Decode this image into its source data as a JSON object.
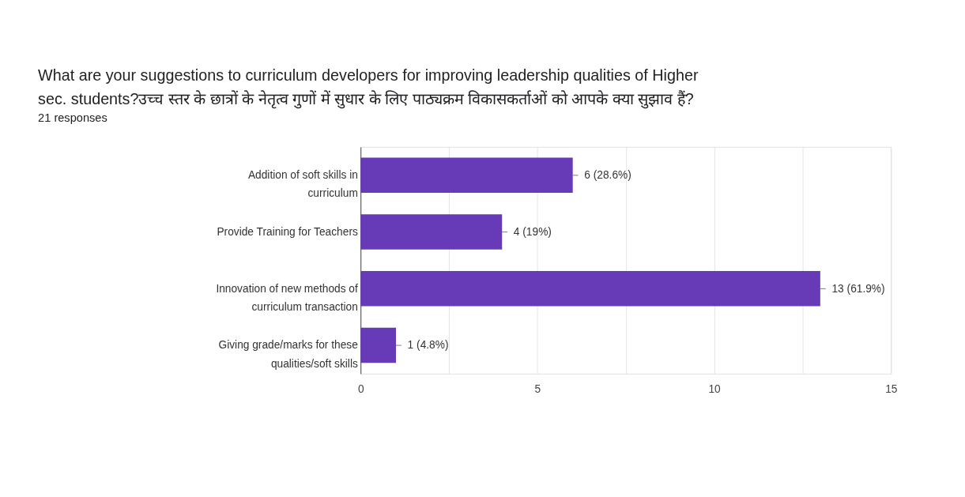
{
  "chart_data": {
    "type": "bar",
    "orientation": "horizontal",
    "title": "What are your suggestions to curriculum developers for improving leadership qualities of Higher sec. students?उच्च स्तर के छात्रों के नेतृत्व गुणों में सुधार के लिए पाठ्यक्रम विकासकर्ताओं को आपके क्या सुझाव हैं?",
    "subtitle": "21 responses",
    "categories": [
      "Addition of soft skills in curriculum",
      "Provide Training for Teachers",
      "Innovation of new methods of curriculum transaction",
      "Giving grade/marks for these qualities/soft skills"
    ],
    "values": [
      6,
      4,
      13,
      1
    ],
    "value_labels": [
      "6 (28.6%)",
      "4 (19%)",
      "13 (61.9%)",
      "1 (4.8%)"
    ],
    "color": "#673ab7",
    "xlim": [
      0,
      15
    ],
    "xticks": [
      0,
      {
        "value": 2.5,
        "label": null
      },
      5,
      {
        "value": 7.5,
        "label": null
      },
      10,
      {
        "value": 12.5,
        "label": null
      },
      15
    ],
    "grid": "x"
  }
}
